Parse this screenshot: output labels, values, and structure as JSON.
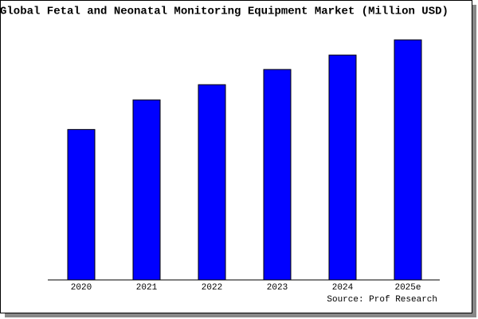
{
  "chart_data": {
    "type": "bar",
    "title": "Global Fetal and Neonatal Monitoring Equipment Market (Million USD)",
    "source": "Source: Prof Research",
    "categories": [
      "2020",
      "2021",
      "2022",
      "2023",
      "2024",
      "2025e"
    ],
    "values": [
      188,
      225,
      244,
      263,
      281,
      300
    ],
    "color": "#0000ff",
    "ylim": [
      0,
      300
    ]
  }
}
